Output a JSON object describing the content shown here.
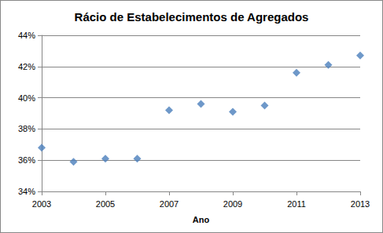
{
  "chart_data": {
    "type": "scatter",
    "title": "Rácio de Estabelecimentos de Agregados",
    "x_label": "Ano",
    "x": [
      2003,
      2004,
      2005,
      2006,
      2007,
      2008,
      2009,
      2010,
      2011,
      2012,
      2013
    ],
    "values": [
      36.8,
      35.9,
      36.1,
      36.1,
      39.2,
      39.6,
      39.1,
      39.5,
      41.6,
      42.1,
      42.7
    ],
    "color": "#4a7ebb",
    "marker": "diamond",
    "xlim": [
      2003,
      2013
    ],
    "xticks": [
      2003,
      2005,
      2007,
      2009,
      2011,
      2013
    ],
    "ylim": [
      34,
      44
    ],
    "yticks": [
      {
        "value": 34,
        "label": "34%"
      },
      {
        "value": 36,
        "label": "36%"
      },
      {
        "value": 38,
        "label": "38%"
      },
      {
        "value": 40,
        "label": "40%"
      },
      {
        "value": 42,
        "label": "42%"
      },
      {
        "value": 44,
        "label": "44%"
      }
    ],
    "grid": true
  }
}
